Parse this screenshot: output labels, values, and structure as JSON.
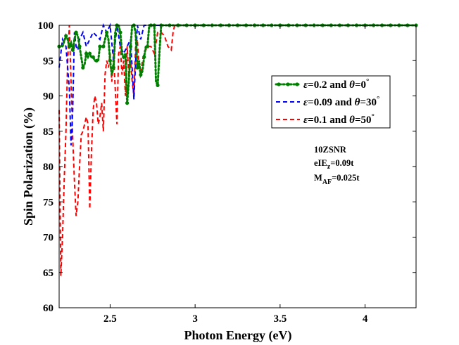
{
  "chart_data": {
    "type": "line",
    "title": "",
    "xlabel": "Photon Energy (eV)",
    "ylabel": "Spin Polarization (%)",
    "xlim": [
      2.2,
      4.3
    ],
    "ylim": [
      60,
      100
    ],
    "xticks": [
      2.5,
      3,
      3.5,
      4
    ],
    "yticks": [
      60,
      65,
      70,
      75,
      80,
      85,
      90,
      95,
      100
    ],
    "xtick_labels": [
      "2.5",
      "3",
      "3.5",
      "4"
    ],
    "ytick_labels": [
      "60",
      "65",
      "70",
      "75",
      "80",
      "85",
      "90",
      "95",
      "100"
    ],
    "legend_position": "top-right",
    "series": [
      {
        "name": "ε=0.2 and θ=0°",
        "legend_parts": [
          "ε",
          "=0.2 and ",
          "θ",
          "=0",
          "°"
        ],
        "color": "#008000",
        "style": "dotted-markers",
        "x": [
          2.2,
          2.22,
          2.24,
          2.25,
          2.26,
          2.27,
          2.28,
          2.29,
          2.3,
          2.31,
          2.32,
          2.33,
          2.34,
          2.35,
          2.36,
          2.37,
          2.38,
          2.39,
          2.4,
          2.41,
          2.42,
          2.43,
          2.44,
          2.45,
          2.46,
          2.47,
          2.48,
          2.49,
          2.5,
          2.51,
          2.52,
          2.53,
          2.54,
          2.55,
          2.56,
          2.57,
          2.58,
          2.59,
          2.6,
          2.61,
          2.62,
          2.63,
          2.64,
          2.65,
          2.66,
          2.67,
          2.68,
          2.69,
          2.7,
          2.71,
          2.72,
          2.73,
          2.74,
          2.75,
          2.76,
          2.77,
          2.78,
          2.79,
          2.8,
          2.85,
          2.9,
          3.0,
          3.2,
          3.4,
          3.6,
          3.8,
          4.0,
          4.2,
          4.3
        ],
        "y": [
          97,
          97,
          98.5,
          98,
          97,
          97.5,
          96.5,
          98,
          99,
          98.5,
          97,
          95.5,
          94,
          94.5,
          96,
          95.5,
          96,
          95.5,
          95.5,
          95,
          95,
          95,
          97,
          97,
          97,
          98,
          99,
          98,
          95,
          93,
          94,
          99,
          100,
          100,
          99,
          96,
          95.5,
          96,
          89,
          92,
          97,
          100,
          100,
          99,
          94,
          95,
          93,
          93.5,
          95.5,
          97,
          97,
          100,
          100,
          100,
          100,
          92,
          91.5,
          96,
          100,
          100,
          100,
          100,
          100,
          100,
          100,
          100,
          100,
          100,
          100
        ]
      },
      {
        "name": "ε=0.09 and θ=30°",
        "legend_parts": [
          "ε",
          "=0.09 and ",
          "θ",
          "=30",
          "°"
        ],
        "color": "#0000ff",
        "style": "dashed",
        "x": [
          2.2,
          2.22,
          2.24,
          2.26,
          2.27,
          2.28,
          2.29,
          2.3,
          2.31,
          2.32,
          2.34,
          2.36,
          2.38,
          2.4,
          2.42,
          2.44,
          2.46,
          2.48,
          2.5,
          2.52,
          2.54,
          2.56,
          2.58,
          2.6,
          2.62,
          2.64,
          2.66,
          2.68,
          2.7,
          2.72,
          2.74,
          2.76,
          2.8,
          2.9,
          3.0,
          3.5,
          4.0,
          4.3
        ],
        "y": [
          94,
          98,
          97,
          91,
          83,
          88,
          99,
          97,
          96.5,
          98,
          99,
          97,
          98,
          99,
          98.5,
          98,
          100,
          99,
          100,
          95,
          100,
          97,
          96,
          97,
          98,
          89.5,
          100,
          98,
          100,
          100,
          100,
          100,
          100,
          100,
          100,
          100,
          100,
          100
        ]
      },
      {
        "name": "ε=0.1  and θ=50°",
        "legend_parts": [
          "ε",
          "=0.1  and ",
          "θ",
          "=50",
          "°"
        ],
        "color": "#ff0000",
        "style": "dashed",
        "x": [
          2.2,
          2.21,
          2.22,
          2.23,
          2.24,
          2.25,
          2.26,
          2.27,
          2.28,
          2.29,
          2.3,
          2.31,
          2.32,
          2.33,
          2.34,
          2.35,
          2.36,
          2.37,
          2.38,
          2.39,
          2.4,
          2.41,
          2.42,
          2.43,
          2.44,
          2.45,
          2.46,
          2.47,
          2.48,
          2.49,
          2.5,
          2.51,
          2.52,
          2.53,
          2.54,
          2.55,
          2.56,
          2.57,
          2.58,
          2.59,
          2.6,
          2.61,
          2.62,
          2.63,
          2.64,
          2.65,
          2.66,
          2.67,
          2.68,
          2.69,
          2.7,
          2.72,
          2.74,
          2.76,
          2.78,
          2.8,
          2.82,
          2.84,
          2.86,
          2.87,
          2.88,
          2.9,
          3.0,
          3.5,
          4.0,
          4.3
        ],
        "y": [
          88,
          64.5,
          70,
          78,
          85,
          95,
          100,
          92,
          84,
          78,
          73,
          75,
          80,
          84.5,
          85,
          86,
          87,
          86,
          74,
          82,
          88,
          90,
          89,
          86,
          87,
          89,
          85,
          93,
          95,
          94,
          96,
          92,
          96,
          91,
          86,
          96,
          97,
          93,
          95,
          90,
          97,
          93,
          95,
          92,
          90,
          97,
          98,
          94,
          93,
          95,
          96,
          97,
          97,
          96,
          99,
          99,
          98.5,
          97,
          96.5,
          99,
          100,
          100,
          100,
          100,
          100,
          100
        ]
      }
    ],
    "annotations": {
      "line1": "10ZSNR",
      "line2_main": "eIE",
      "line2_sub": "z",
      "line2_rest": "=0.09t",
      "line3_main": "M",
      "line3_sub": "AF",
      "line3_rest": "=0.025t"
    }
  }
}
